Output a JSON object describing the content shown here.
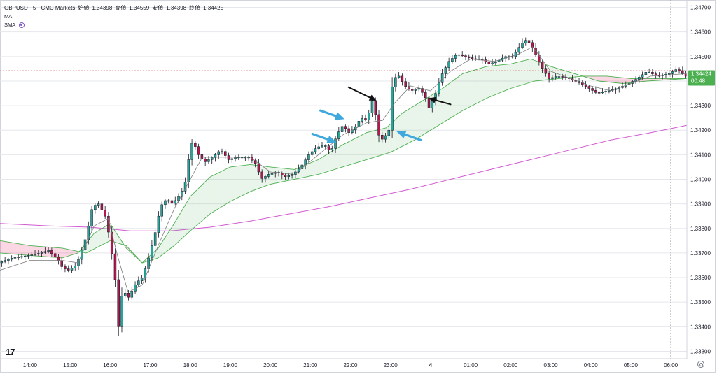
{
  "legend": {
    "symbol": "GBPUSD · 5 · CMC Markets",
    "open_label": "始値",
    "open": "1.34398",
    "high_label": "高値",
    "high": "1.34559",
    "low_label": "安値",
    "low": "1.34398",
    "close_label": "終値",
    "close": "1.34425",
    "indicators": [
      "MA",
      "SMA"
    ]
  },
  "price_badge": {
    "price": "1.34424",
    "countdown": "00:48"
  },
  "logo_text": "17",
  "colors": {
    "up": "#26a69a",
    "down": "#b5174f",
    "wick": "#131722",
    "ma_fast": "#7a7a7a",
    "cloud_bull": "#4caf50",
    "cloud_bear": "#e91e63",
    "sma_long": "#d15ad1",
    "arrow_blue": "#3fa9dd",
    "arrow_black": "#111111",
    "price_line": "#d32f2f",
    "badge": "#4caf50"
  },
  "chart_data": {
    "type": "candlestick",
    "title": "GBPUSD · 5 · CMC Markets",
    "y_ticks": [
      "1.34700",
      "1.34600",
      "1.34500",
      "1.34400",
      "1.34300",
      "1.34200",
      "1.34100",
      "1.34000",
      "1.33900",
      "1.33800",
      "1.33700",
      "1.33600",
      "1.33500",
      "1.33400",
      "1.33300"
    ],
    "ylim": [
      1.3327,
      1.3473
    ],
    "x_ticks": [
      "14:00",
      "15:00",
      "16:00",
      "17:00",
      "18:00",
      "19:00",
      "20:00",
      "21:00",
      "22:00",
      "23:00",
      "4",
      "01:00",
      "02:00",
      "03:00",
      "04:00",
      "05:00",
      "06:00"
    ],
    "x_tick_times": [
      14,
      15,
      16,
      17,
      18,
      19,
      20,
      21,
      22,
      23,
      24,
      25,
      26,
      27,
      28,
      29,
      30
    ],
    "xlim": [
      13.25,
      30.4
    ],
    "current_price": 1.34424,
    "price_line": 1.34442,
    "time_cursor": 30.0,
    "price_path": [
      [
        13.25,
        1.3366
      ],
      [
        13.6,
        1.3368
      ],
      [
        14.0,
        1.3369
      ],
      [
        14.3,
        1.337
      ],
      [
        14.5,
        1.3371
      ],
      [
        14.7,
        1.3368
      ],
      [
        14.85,
        1.3364
      ],
      [
        15.0,
        1.3363
      ],
      [
        15.2,
        1.3365
      ],
      [
        15.45,
        1.3377
      ],
      [
        15.6,
        1.3389
      ],
      [
        15.75,
        1.339
      ],
      [
        15.95,
        1.3384
      ],
      [
        16.05,
        1.3373
      ],
      [
        16.15,
        1.3363
      ],
      [
        16.25,
        1.334
      ],
      [
        16.35,
        1.3355
      ],
      [
        16.5,
        1.3352
      ],
      [
        16.7,
        1.3358
      ],
      [
        16.85,
        1.336
      ],
      [
        17.0,
        1.3368
      ],
      [
        17.15,
        1.3377
      ],
      [
        17.3,
        1.3389
      ],
      [
        17.45,
        1.3392
      ],
      [
        17.6,
        1.339
      ],
      [
        17.75,
        1.3393
      ],
      [
        17.9,
        1.3397
      ],
      [
        18.0,
        1.3408
      ],
      [
        18.1,
        1.3416
      ],
      [
        18.25,
        1.341
      ],
      [
        18.4,
        1.3407
      ],
      [
        18.6,
        1.3409
      ],
      [
        18.8,
        1.3412
      ],
      [
        19.0,
        1.3408
      ],
      [
        19.2,
        1.3409
      ],
      [
        19.5,
        1.3409
      ],
      [
        19.7,
        1.3406
      ],
      [
        19.8,
        1.34
      ],
      [
        20.0,
        1.3402
      ],
      [
        20.2,
        1.3403
      ],
      [
        20.4,
        1.3401
      ],
      [
        20.6,
        1.3402
      ],
      [
        20.8,
        1.3405
      ],
      [
        21.0,
        1.341
      ],
      [
        21.2,
        1.3413
      ],
      [
        21.4,
        1.3414
      ],
      [
        21.55,
        1.3411
      ],
      [
        21.7,
        1.3418
      ],
      [
        21.85,
        1.3422
      ],
      [
        22.0,
        1.3419
      ],
      [
        22.15,
        1.3421
      ],
      [
        22.3,
        1.3425
      ],
      [
        22.45,
        1.3424
      ],
      [
        22.6,
        1.3433
      ],
      [
        22.75,
        1.3418
      ],
      [
        22.85,
        1.3416
      ],
      [
        23.0,
        1.342
      ],
      [
        23.1,
        1.3441
      ],
      [
        23.25,
        1.3442
      ],
      [
        23.4,
        1.3438
      ],
      [
        23.55,
        1.3436
      ],
      [
        23.75,
        1.3437
      ],
      [
        23.9,
        1.3434
      ],
      [
        24.0,
        1.3429
      ],
      [
        24.15,
        1.3434
      ],
      [
        24.3,
        1.3442
      ],
      [
        24.5,
        1.3448
      ],
      [
        24.7,
        1.3451
      ],
      [
        24.9,
        1.345
      ],
      [
        25.1,
        1.3449
      ],
      [
        25.3,
        1.3449
      ],
      [
        25.5,
        1.3447
      ],
      [
        25.7,
        1.3448
      ],
      [
        25.9,
        1.345
      ],
      [
        26.1,
        1.345
      ],
      [
        26.3,
        1.3455
      ],
      [
        26.45,
        1.3457
      ],
      [
        26.6,
        1.3453
      ],
      [
        26.8,
        1.3446
      ],
      [
        27.0,
        1.3441
      ],
      [
        27.2,
        1.3442
      ],
      [
        27.5,
        1.3441
      ],
      [
        27.8,
        1.3439
      ],
      [
        28.0,
        1.3437
      ],
      [
        28.2,
        1.3435
      ],
      [
        28.45,
        1.3436
      ],
      [
        28.7,
        1.3437
      ],
      [
        29.0,
        1.3439
      ],
      [
        29.2,
        1.3441
      ],
      [
        29.45,
        1.3444
      ],
      [
        29.7,
        1.3442
      ],
      [
        30.0,
        1.3443
      ],
      [
        30.2,
        1.3445
      ],
      [
        30.4,
        1.3442
      ]
    ],
    "ma_fast_path": [
      [
        13.25,
        1.3363
      ],
      [
        14.0,
        1.3367
      ],
      [
        14.8,
        1.3367
      ],
      [
        15.2,
        1.3366
      ],
      [
        15.6,
        1.3381
      ],
      [
        15.95,
        1.3384
      ],
      [
        16.2,
        1.3368
      ],
      [
        16.45,
        1.3354
      ],
      [
        16.8,
        1.3357
      ],
      [
        17.2,
        1.3373
      ],
      [
        17.6,
        1.3388
      ],
      [
        18.0,
        1.34
      ],
      [
        18.3,
        1.3409
      ],
      [
        18.8,
        1.3409
      ],
      [
        19.5,
        1.3409
      ],
      [
        20.0,
        1.3403
      ],
      [
        20.6,
        1.3402
      ],
      [
        21.2,
        1.341
      ],
      [
        21.8,
        1.3418
      ],
      [
        22.4,
        1.3423
      ],
      [
        22.8,
        1.3424
      ],
      [
        23.1,
        1.3431
      ],
      [
        23.5,
        1.3438
      ],
      [
        24.0,
        1.3436
      ],
      [
        24.5,
        1.3444
      ],
      [
        25.0,
        1.3449
      ],
      [
        25.6,
        1.3448
      ],
      [
        26.2,
        1.3451
      ],
      [
        26.55,
        1.3454
      ],
      [
        27.0,
        1.3444
      ],
      [
        27.5,
        1.3441
      ],
      [
        28.0,
        1.3438
      ],
      [
        28.5,
        1.3436
      ],
      [
        29.0,
        1.3439
      ],
      [
        29.5,
        1.3442
      ],
      [
        30.4,
        1.3443
      ]
    ],
    "cloud_fast": [
      [
        13.25,
        1.337
      ],
      [
        14.0,
        1.3369
      ],
      [
        14.8,
        1.3368
      ],
      [
        15.2,
        1.337
      ],
      [
        15.6,
        1.3378
      ],
      [
        16.0,
        1.3382
      ],
      [
        16.4,
        1.3372
      ],
      [
        16.8,
        1.3366
      ],
      [
        17.2,
        1.3372
      ],
      [
        17.6,
        1.3382
      ],
      [
        18.0,
        1.3393
      ],
      [
        18.5,
        1.3401
      ],
      [
        19.0,
        1.3405
      ],
      [
        19.5,
        1.3406
      ],
      [
        20.0,
        1.3405
      ],
      [
        20.6,
        1.3404
      ],
      [
        21.2,
        1.3408
      ],
      [
        21.8,
        1.3414
      ],
      [
        22.4,
        1.3419
      ],
      [
        22.9,
        1.3421
      ],
      [
        23.3,
        1.3427
      ],
      [
        23.8,
        1.3432
      ],
      [
        24.3,
        1.3437
      ],
      [
        24.8,
        1.3443
      ],
      [
        25.4,
        1.3446
      ],
      [
        26.0,
        1.3447
      ],
      [
        26.5,
        1.3449
      ],
      [
        27.0,
        1.3446
      ],
      [
        27.6,
        1.3443
      ],
      [
        28.2,
        1.344
      ],
      [
        28.8,
        1.3439
      ],
      [
        29.4,
        1.344
      ],
      [
        30.4,
        1.3441
      ]
    ],
    "cloud_slow": [
      [
        13.25,
        1.3375
      ],
      [
        14.0,
        1.3373
      ],
      [
        14.8,
        1.3372
      ],
      [
        15.4,
        1.337
      ],
      [
        16.0,
        1.3375
      ],
      [
        16.4,
        1.3373
      ],
      [
        16.8,
        1.3366
      ],
      [
        17.2,
        1.3368
      ],
      [
        17.6,
        1.3373
      ],
      [
        18.0,
        1.3379
      ],
      [
        18.5,
        1.3386
      ],
      [
        19.0,
        1.3391
      ],
      [
        19.5,
        1.3395
      ],
      [
        20.0,
        1.3398
      ],
      [
        20.6,
        1.34
      ],
      [
        21.2,
        1.3402
      ],
      [
        21.8,
        1.3405
      ],
      [
        22.4,
        1.3408
      ],
      [
        23.0,
        1.3411
      ],
      [
        23.6,
        1.3416
      ],
      [
        24.2,
        1.3422
      ],
      [
        24.8,
        1.3428
      ],
      [
        25.4,
        1.3433
      ],
      [
        26.0,
        1.3437
      ],
      [
        26.6,
        1.344
      ],
      [
        27.2,
        1.3441
      ],
      [
        27.8,
        1.3442
      ],
      [
        28.4,
        1.3442
      ],
      [
        29.0,
        1.3441
      ],
      [
        29.6,
        1.3441
      ],
      [
        30.4,
        1.3441
      ]
    ],
    "sma_long": [
      [
        13.25,
        1.3382
      ],
      [
        14.5,
        1.3381
      ],
      [
        15.5,
        1.33805
      ],
      [
        16.5,
        1.3379
      ],
      [
        17.5,
        1.3379
      ],
      [
        18.5,
        1.33805
      ],
      [
        19.5,
        1.3383
      ],
      [
        20.5,
        1.3386
      ],
      [
        21.5,
        1.3389
      ],
      [
        22.5,
        1.33925
      ],
      [
        23.5,
        1.3396
      ],
      [
        24.5,
        1.34
      ],
      [
        25.5,
        1.3404
      ],
      [
        26.5,
        1.3408
      ],
      [
        27.5,
        1.3412
      ],
      [
        28.5,
        1.3416
      ],
      [
        29.5,
        1.3419
      ],
      [
        30.4,
        1.3422
      ]
    ],
    "arrows": [
      {
        "color": "blue",
        "from": [
          21.25,
          1.3428
        ],
        "to": [
          21.85,
          1.34245
        ]
      },
      {
        "color": "blue",
        "from": [
          21.05,
          1.34185
        ],
        "to": [
          21.65,
          1.3415
        ]
      },
      {
        "color": "blue",
        "from": [
          23.75,
          1.3416
        ],
        "to": [
          23.15,
          1.34195
        ]
      },
      {
        "color": "black",
        "from": [
          21.95,
          1.34375
        ],
        "to": [
          22.65,
          1.3432
        ]
      },
      {
        "color": "black",
        "from": [
          24.5,
          1.34305
        ],
        "to": [
          23.95,
          1.3433
        ]
      }
    ]
  }
}
